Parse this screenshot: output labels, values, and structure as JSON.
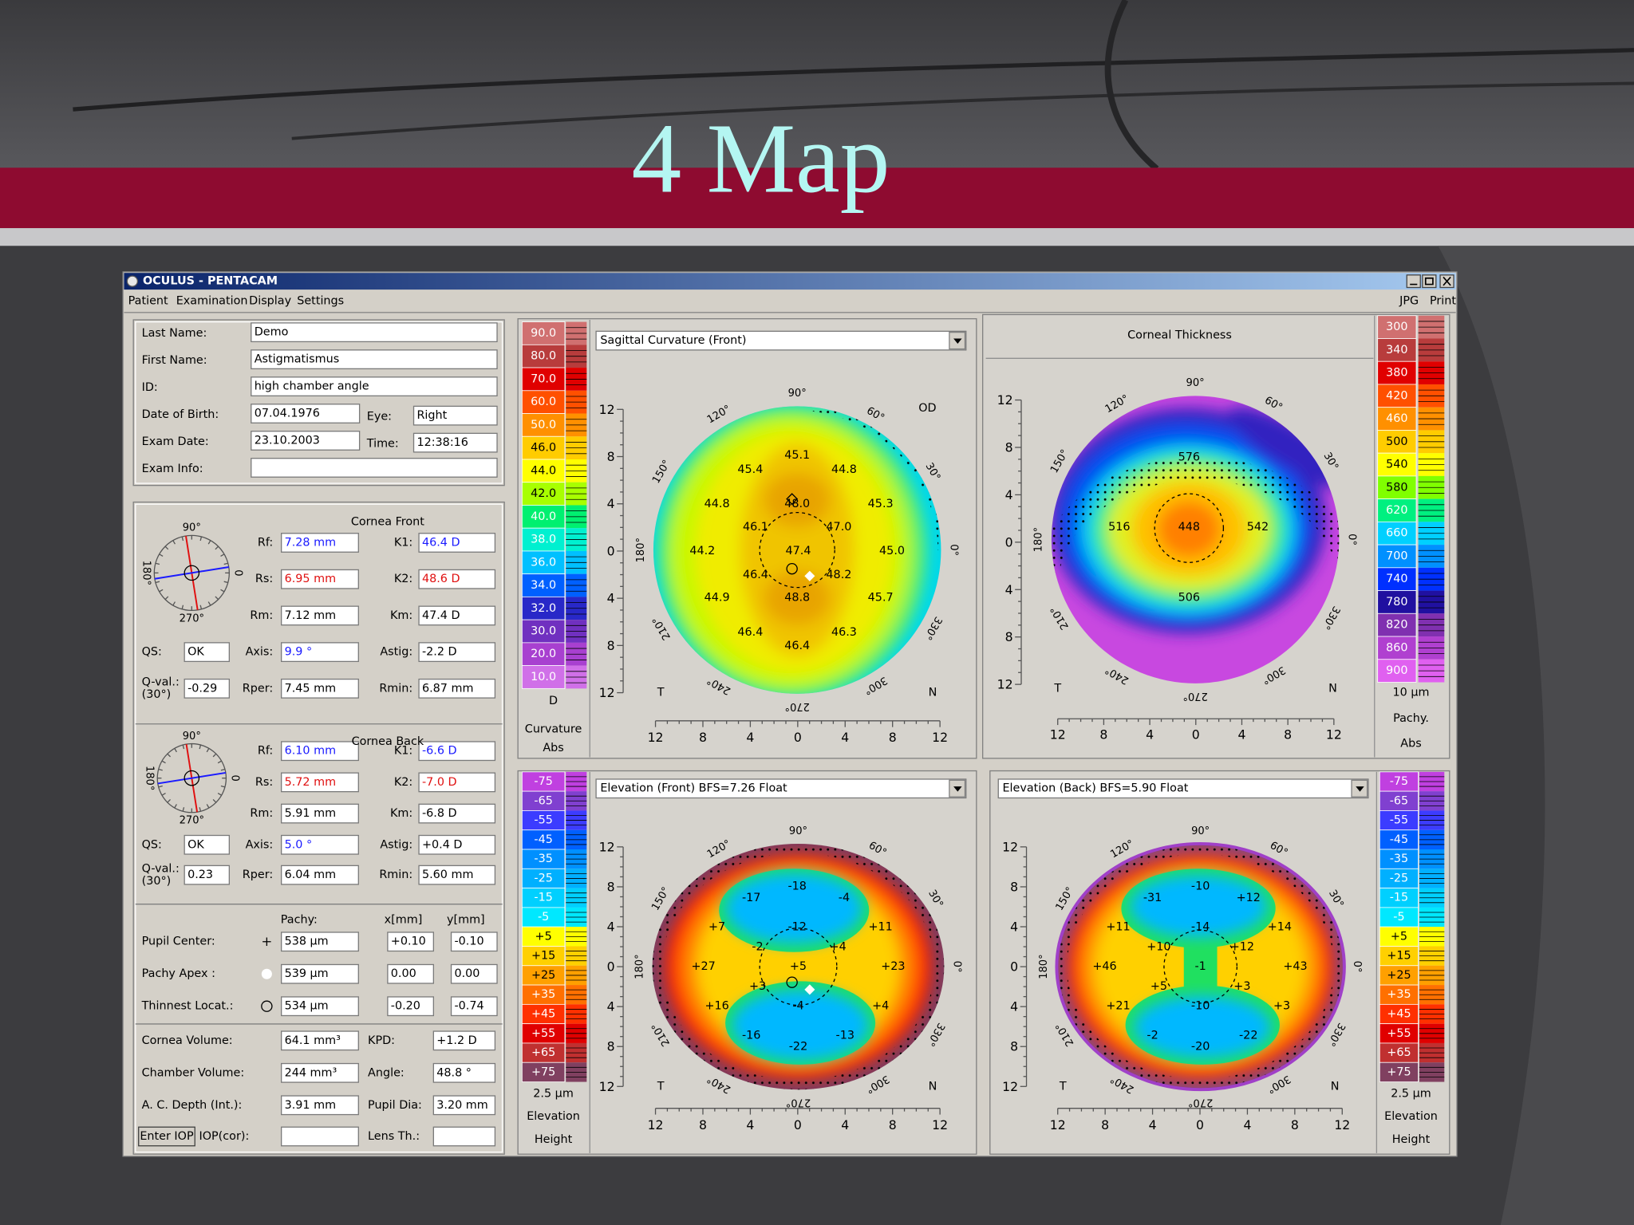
{
  "slide": {
    "title": "4 Map"
  },
  "window": {
    "title": "OCULUS - PENTACAM",
    "menu": [
      "Patient",
      "Examination",
      "Display",
      "Settings"
    ],
    "menu_right": [
      "JPG",
      "Print"
    ]
  },
  "patient": {
    "fields": [
      {
        "label": "Last Name:",
        "value": "Demo"
      },
      {
        "label": "First Name:",
        "value": "Astigmatismus"
      },
      {
        "label": "ID:",
        "value": "high chamber angle"
      },
      {
        "label": "Date of Birth:",
        "value": "07.04.1976"
      },
      {
        "label": "Eye:",
        "value": "Right"
      },
      {
        "label": "Exam Date:",
        "value": "23.10.2003"
      },
      {
        "label": "Time:",
        "value": "12:38:16"
      },
      {
        "label": "Exam Info:"
      }
    ]
  },
  "cornea_front": {
    "title": "Cornea Front",
    "compass": [
      "90°",
      "180°",
      "0",
      "270°"
    ],
    "fields": [
      {
        "label": "Rf:",
        "value": "7.28 mm",
        "color": "#1a1aff"
      },
      {
        "label": "K1:",
        "value": "46.4 D",
        "color": "#1a1aff"
      },
      {
        "label": "Rs:",
        "value": "6.95 mm",
        "color": "#e01010"
      },
      {
        "label": "K2:",
        "value": "48.6 D",
        "color": "#e01010"
      },
      {
        "label": "Rm:",
        "value": "7.12 mm",
        "color": "#000000"
      },
      {
        "label": "Km:",
        "value": "47.4 D",
        "color": "#000000"
      },
      {
        "label": "QS:",
        "value": "OK",
        "color": "#000000"
      },
      {
        "label": "Axis:",
        "value": "9.9 °",
        "color": "#1a1aff"
      },
      {
        "label": "Astig:",
        "value": "-2.2 D",
        "color": "#000000"
      },
      {
        "label": "Q-val.:",
        "sublabel": "(30°)",
        "value": "-0.29",
        "color": "#000000"
      },
      {
        "label": "Rper:",
        "value": "7.45 mm",
        "color": "#000000"
      },
      {
        "label": "Rmin:",
        "value": "6.87 mm",
        "color": "#000000"
      }
    ]
  },
  "cornea_back": {
    "title": "Cornea Back",
    "compass": [
      "90°",
      "180°",
      "0",
      "270°"
    ],
    "fields": [
      {
        "label": "Rf:",
        "value": "6.10 mm",
        "color": "#1a1aff"
      },
      {
        "label": "K1:",
        "value": "-6.6 D",
        "color": "#1a1aff"
      },
      {
        "label": "Rs:",
        "value": "5.72 mm",
        "color": "#e01010"
      },
      {
        "label": "K2:",
        "value": "-7.0 D",
        "color": "#e01010"
      },
      {
        "label": "Rm:",
        "value": "5.91 mm",
        "color": "#000000"
      },
      {
        "label": "Km:",
        "value": "-6.8 D",
        "color": "#000000"
      },
      {
        "label": "QS:",
        "value": "OK",
        "color": "#000000"
      },
      {
        "label": "Axis:",
        "value": "5.0 °",
        "color": "#1a1aff"
      },
      {
        "label": "Astig:",
        "value": "+0.4 D",
        "color": "#000000"
      },
      {
        "label": "Q-val.:",
        "sublabel": "(30°)",
        "value": "0.23",
        "color": "#000000"
      },
      {
        "label": "Rper:",
        "value": "6.04 mm",
        "color": "#000000"
      },
      {
        "label": "Rmin:",
        "value": "5.60 mm",
        "color": "#000000"
      }
    ]
  },
  "pachy": {
    "headers": [
      "Pachy:",
      "x[mm]",
      "y[mm]"
    ],
    "rows": [
      {
        "label": "Pupil Center:",
        "values": [
          "538 µm",
          "+0.10",
          "-0.10"
        ]
      },
      {
        "label": "Pachy Apex :",
        "values": [
          "539 µm",
          "0.00",
          "0.00"
        ]
      },
      {
        "label": "Thinnest Locat.:",
        "values": [
          "534 µm",
          "-0.20",
          "-0.74"
        ]
      }
    ]
  },
  "volumes": {
    "button": "Enter IOP",
    "fields": [
      {
        "label": "Cornea Volume:",
        "value": "64.1 mm³"
      },
      {
        "label": "KPD:",
        "value": "+1.2 D"
      },
      {
        "label": "Chamber Volume:",
        "value": "244 mm³"
      },
      {
        "label": "Angle:",
        "value": "48.8 °"
      },
      {
        "label": "A. C. Depth (Int.):",
        "value": "3.91 mm"
      },
      {
        "label": "Pupil Dia:",
        "value": "3.20 mm"
      },
      {
        "label": "IOP(cor):"
      },
      {
        "label": "Lens Th.:"
      }
    ]
  },
  "maps": [
    {
      "title": "Sagittal Curvature (Front)",
      "eye": "OD",
      "scale": [
        {
          "label": "90.0",
          "color": "#d07070"
        },
        {
          "label": "80.0",
          "color": "#b83c3c"
        },
        {
          "label": "70.0",
          "color": "#e00000"
        },
        {
          "label": "60.0",
          "color": "#ff5000"
        },
        {
          "label": "50.0",
          "color": "#ff9000"
        },
        {
          "label": "46.0",
          "color": "#ffcc00"
        },
        {
          "label": "44.0",
          "color": "#ffff00"
        },
        {
          "label": "42.0",
          "color": "#a8ff00"
        },
        {
          "label": "40.0",
          "color": "#00f070"
        },
        {
          "label": "38.0",
          "color": "#00f0d0"
        },
        {
          "label": "36.0",
          "color": "#00c0ff"
        },
        {
          "label": "34.0",
          "color": "#0060ff"
        },
        {
          "label": "32.0",
          "color": "#2828c8"
        },
        {
          "label": "30.0",
          "color": "#7030c0"
        },
        {
          "label": "20.0",
          "color": "#a840d0"
        },
        {
          "label": "10.0",
          "color": "#d070e8"
        }
      ],
      "scale_footer": [
        "D",
        "Curvature",
        "Abs"
      ],
      "values": [
        "45.1",
        "45.4",
        "44.8",
        "44.8",
        "48.0",
        "45.3",
        "46.1",
        "47.0",
        "44.2",
        "47.4",
        "45.0",
        "46.4",
        "48.2",
        "44.9",
        "48.8",
        "45.7",
        "46.4",
        "46.3",
        "46.4"
      ],
      "angle_labels": [
        "90°",
        "120°",
        "60°",
        "150°",
        "30°",
        "180°",
        "0°",
        "210°",
        "330°",
        "240°",
        "300°",
        "270°"
      ],
      "y_ticks": [
        12,
        8,
        4,
        0,
        4,
        8,
        12
      ],
      "x_ticks": [
        12,
        8,
        4,
        0,
        4,
        8,
        12
      ],
      "side_labels": [
        "T",
        "N"
      ]
    },
    {
      "title": "Corneal Thickness",
      "scale": [
        {
          "label": "300",
          "color": "#d07070"
        },
        {
          "label": "340",
          "color": "#b83c3c"
        },
        {
          "label": "380",
          "color": "#e00000"
        },
        {
          "label": "420",
          "color": "#ff5000"
        },
        {
          "label": "460",
          "color": "#ff9000"
        },
        {
          "label": "500",
          "color": "#ffcc00"
        },
        {
          "label": "540",
          "color": "#ffff00"
        },
        {
          "label": "580",
          "color": "#80ff00"
        },
        {
          "label": "620",
          "color": "#00f080"
        },
        {
          "label": "660",
          "color": "#00d0ff"
        },
        {
          "label": "700",
          "color": "#0090ff"
        },
        {
          "label": "740",
          "color": "#0030ff"
        },
        {
          "label": "780",
          "color": "#2010a0"
        },
        {
          "label": "820",
          "color": "#8030b0"
        },
        {
          "label": "860",
          "color": "#b040d0"
        },
        {
          "label": "900",
          "color": "#e060f0"
        }
      ],
      "scale_footer": [
        "10 µm",
        "Pachy.",
        "Abs"
      ],
      "values": [
        "576",
        "516",
        "448",
        "542",
        "506"
      ],
      "angle_labels": [
        "90°",
        "120°",
        "60°",
        "150°",
        "30°",
        "180°",
        "0°",
        "210°",
        "330°",
        "240°",
        "300°",
        "270°"
      ],
      "y_ticks": [
        12,
        8,
        4,
        0,
        4,
        8,
        12
      ],
      "x_ticks": [
        12,
        8,
        4,
        0,
        4,
        8,
        12
      ],
      "side_labels": [
        "T",
        "N"
      ]
    },
    {
      "title": "Elevation (Front)  BFS=7.26 Float",
      "scale": [
        {
          "label": "-75",
          "color": "#c040e0"
        },
        {
          "label": "-65",
          "color": "#8040d0"
        },
        {
          "label": "-55",
          "color": "#3c3cff"
        },
        {
          "label": "-45",
          "color": "#0060ff"
        },
        {
          "label": "-35",
          "color": "#0090ff"
        },
        {
          "label": "-25",
          "color": "#00b0ff"
        },
        {
          "label": "-15",
          "color": "#00d0ff"
        },
        {
          "label": "-5",
          "color": "#00e8ff"
        },
        {
          "label": "+5",
          "color": "#ffff00"
        },
        {
          "label": "+15",
          "color": "#ffd000"
        },
        {
          "label": "+25",
          "color": "#ffa000"
        },
        {
          "label": "+35",
          "color": "#ff7000"
        },
        {
          "label": "+45",
          "color": "#ff3000"
        },
        {
          "label": "+55",
          "color": "#e00000"
        },
        {
          "label": "+65",
          "color": "#c03030"
        },
        {
          "label": "+75",
          "color": "#804060"
        }
      ],
      "scale_footer": [
        "2.5 µm",
        "Elevation",
        "Height"
      ],
      "values": [
        "-18",
        "-17",
        "-4",
        "+7",
        "-12",
        "+11",
        "-2",
        "+4",
        "+27",
        "+5",
        "+23",
        "+3",
        "-4",
        "+16",
        "+4",
        "-16",
        "-13",
        "-22"
      ],
      "angle_labels": [
        "90°",
        "120°",
        "60°",
        "150°",
        "30°",
        "180°",
        "0°",
        "210°",
        "330°",
        "240°",
        "300°",
        "270°"
      ],
      "y_ticks": [
        12,
        8,
        4,
        0,
        4,
        8,
        12
      ],
      "x_ticks": [
        12,
        8,
        4,
        0,
        4,
        8,
        12
      ],
      "side_labels": [
        "T",
        "N"
      ]
    },
    {
      "title": "Elevation (Back)  BFS=5.90 Float",
      "scale": [
        {
          "label": "-75",
          "color": "#c040e0"
        },
        {
          "label": "-65",
          "color": "#8040d0"
        },
        {
          "label": "-55",
          "color": "#3c3cff"
        },
        {
          "label": "-45",
          "color": "#0060ff"
        },
        {
          "label": "-35",
          "color": "#0090ff"
        },
        {
          "label": "-25",
          "color": "#00b0ff"
        },
        {
          "label": "-15",
          "color": "#00d0ff"
        },
        {
          "label": "-5",
          "color": "#00e8ff"
        },
        {
          "label": "+5",
          "color": "#ffff00"
        },
        {
          "label": "+15",
          "color": "#ffd000"
        },
        {
          "label": "+25",
          "color": "#ffa000"
        },
        {
          "label": "+35",
          "color": "#ff7000"
        },
        {
          "label": "+45",
          "color": "#ff3000"
        },
        {
          "label": "+55",
          "color": "#e00000"
        },
        {
          "label": "+65",
          "color": "#c03030"
        },
        {
          "label": "+75",
          "color": "#804060"
        }
      ],
      "scale_footer": [
        "2.5 µm",
        "Elevation",
        "Height"
      ],
      "values": [
        "-31",
        "-10",
        "+12",
        "+11",
        "-14",
        "+14",
        "+10",
        "+12",
        "+46",
        "-1",
        "+43",
        "+5",
        "+3",
        "-10",
        "+21",
        "+3",
        "-2",
        "-22",
        "-20"
      ],
      "angle_labels": [
        "90°",
        "120°",
        "60°",
        "150°",
        "30°",
        "180°",
        "0°",
        "210°",
        "330°",
        "240°",
        "300°",
        "270°"
      ],
      "y_ticks": [
        12,
        8,
        4,
        0,
        4,
        8,
        12
      ],
      "x_ticks": [
        12,
        8,
        4,
        0,
        4,
        8,
        12
      ],
      "side_labels": [
        "T",
        "N"
      ]
    }
  ]
}
